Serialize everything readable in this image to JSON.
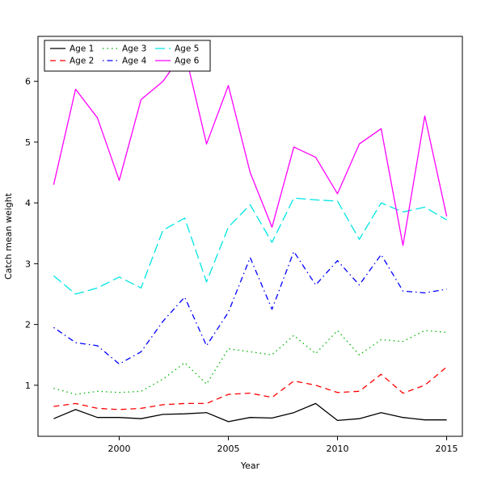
{
  "chart_data": {
    "type": "line",
    "title": "",
    "xlabel": "Year",
    "ylabel": "Catch mean weight",
    "x": [
      1997,
      1998,
      1999,
      2000,
      2001,
      2002,
      2003,
      2004,
      2005,
      2006,
      2007,
      2008,
      2009,
      2010,
      2011,
      2012,
      2013,
      2014,
      2015
    ],
    "xlim": [
      1996.28,
      2015.72
    ],
    "ylim": [
      0.16,
      6.74
    ],
    "xticks": [
      2000,
      2005,
      2010,
      2015
    ],
    "yticks": [
      1,
      2,
      3,
      4,
      5,
      6
    ],
    "grid": false,
    "legend_position": "top-left",
    "legend_columns": 3,
    "series": [
      {
        "name": "Age 1",
        "color": "#000000",
        "dash": "",
        "values": [
          0.45,
          0.6,
          0.47,
          0.47,
          0.45,
          0.52,
          0.53,
          0.55,
          0.4,
          0.47,
          0.46,
          0.55,
          0.7,
          0.42,
          0.45,
          0.55,
          0.47,
          0.43,
          0.43
        ]
      },
      {
        "name": "Age 2",
        "color": "#ff0000",
        "dash": "7 5",
        "values": [
          0.65,
          0.7,
          0.62,
          0.6,
          0.62,
          0.68,
          0.7,
          0.7,
          0.85,
          0.87,
          0.8,
          1.07,
          1.0,
          0.88,
          0.9,
          1.18,
          0.87,
          1.0,
          1.3
        ]
      },
      {
        "name": "Age 3",
        "color": "#00b300",
        "dash": "1.5 4",
        "values": [
          0.95,
          0.85,
          0.9,
          0.88,
          0.9,
          1.1,
          1.37,
          1.02,
          1.6,
          1.55,
          1.5,
          1.82,
          1.52,
          1.9,
          1.5,
          1.75,
          1.72,
          1.9,
          1.87
        ]
      },
      {
        "name": "Age 4",
        "color": "#0000ff",
        "dash": "1.5 4 7 4",
        "values": [
          1.95,
          1.7,
          1.65,
          1.35,
          1.55,
          2.05,
          2.45,
          1.65,
          2.2,
          3.1,
          2.25,
          3.2,
          2.65,
          3.05,
          2.65,
          3.15,
          2.55,
          2.52,
          2.58
        ]
      },
      {
        "name": "Age 5",
        "color": "#00e5e5",
        "dash": "12 5",
        "values": [
          2.8,
          2.5,
          2.6,
          2.78,
          2.6,
          3.55,
          3.75,
          2.7,
          3.6,
          3.97,
          3.35,
          4.08,
          4.05,
          4.03,
          3.4,
          4.0,
          3.85,
          3.93,
          3.72
        ]
      },
      {
        "name": "Age 6",
        "color": "#ff00ff",
        "dash": "",
        "values": [
          4.3,
          5.87,
          5.4,
          4.37,
          5.7,
          6.0,
          6.5,
          4.97,
          5.93,
          4.5,
          3.6,
          4.92,
          4.75,
          4.15,
          4.97,
          5.22,
          3.3,
          5.43,
          3.78
        ]
      }
    ]
  }
}
